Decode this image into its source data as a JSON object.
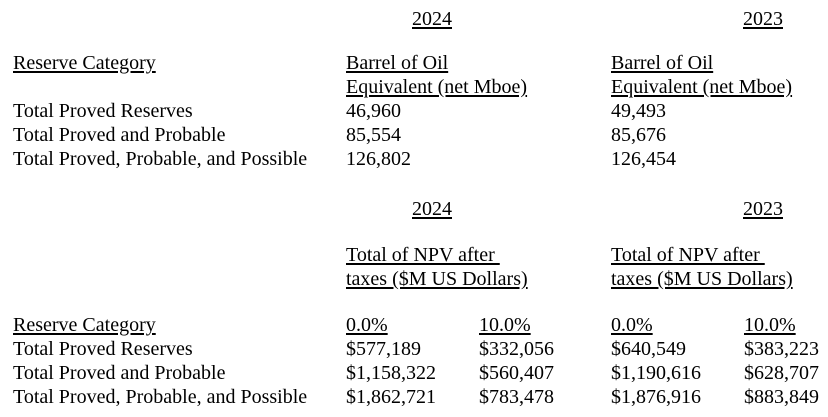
{
  "page": {
    "background": "#ffffff",
    "text_color": "#000000"
  },
  "boe_table": {
    "year_2024": "2024",
    "year_2023": "2023",
    "category_header": "Reserve Category",
    "unit_header_line1": "Barrel of Oil",
    "unit_header_line2": "Equivalent (net Mboe)",
    "rows": [
      {
        "label": "Total Proved Reserves",
        "boe_2024": "46,960",
        "boe_2023": "49,493"
      },
      {
        "label": "Total Proved and Probable",
        "boe_2024": "85,554",
        "boe_2023": "85,676"
      },
      {
        "label": "Total Proved, Probable, and Possible",
        "boe_2024": "126,802",
        "boe_2023": "126,454"
      }
    ]
  },
  "npv_table": {
    "year_2024": "2024",
    "year_2023": "2023",
    "category_header": "Reserve Category",
    "unit_header_line1": "Total of NPV after ",
    "unit_header_line2": "taxes ($M US Dollars)",
    "discount_rates": {
      "r0": "0.0%",
      "r10": "10.0%"
    },
    "rows": [
      {
        "label": "Total Proved Reserves",
        "npv_2024_r0": "$577,189",
        "npv_2024_r10": "$332,056",
        "npv_2023_r0": "$640,549",
        "npv_2023_r10": "$383,223"
      },
      {
        "label": "Total Proved and Probable",
        "npv_2024_r0": "$1,158,322",
        "npv_2024_r10": "$560,407",
        "npv_2023_r0": "$1,190,616",
        "npv_2023_r10": "$628,707"
      },
      {
        "label": "Total Proved, Probable, and Possible",
        "npv_2024_r0": "$1,862,721",
        "npv_2024_r10": "$783,478",
        "npv_2023_r0": "$1,876,916",
        "npv_2023_r10": "$883,849"
      }
    ]
  }
}
